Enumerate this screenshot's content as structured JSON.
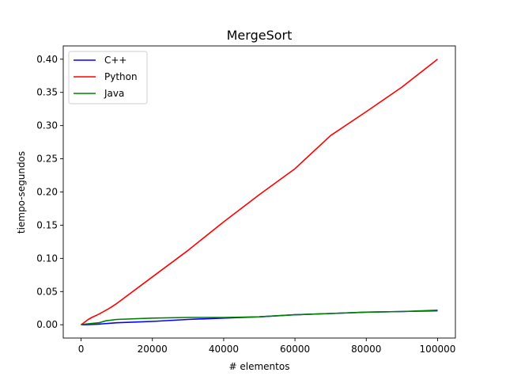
{
  "chart_data": {
    "type": "line",
    "title": "MergeSort",
    "xlabel": "# elementos",
    "ylabel": "tiempo-segundos",
    "xlim": [
      -5000,
      105000
    ],
    "ylim": [
      -0.02,
      0.42
    ],
    "xticks": [
      0,
      20000,
      40000,
      60000,
      80000,
      100000
    ],
    "xtick_labels": [
      "0",
      "20000",
      "40000",
      "60000",
      "80000",
      "100000"
    ],
    "yticks": [
      0.0,
      0.05,
      0.1,
      0.15,
      0.2,
      0.25,
      0.3,
      0.35,
      0.4
    ],
    "ytick_labels": [
      "0.00",
      "0.05",
      "0.10",
      "0.15",
      "0.20",
      "0.25",
      "0.30",
      "0.35",
      "0.40"
    ],
    "grid": false,
    "legend_position": "top-left",
    "series": [
      {
        "name": "C++",
        "color": "#0000ff",
        "x": [
          0,
          1000,
          5000,
          10000,
          20000,
          30000,
          40000,
          50000,
          60000,
          70000,
          80000,
          90000,
          100000
        ],
        "y": [
          0.0,
          0.0,
          0.001,
          0.003,
          0.005,
          0.008,
          0.01,
          0.012,
          0.015,
          0.017,
          0.019,
          0.02,
          0.021
        ]
      },
      {
        "name": "Python",
        "color": "#ff0000",
        "x": [
          0,
          500,
          1000,
          2000,
          3000,
          5000,
          8000,
          10000,
          20000,
          30000,
          40000,
          50000,
          60000,
          70000,
          80000,
          90000,
          100000
        ],
        "y": [
          0.0,
          0.002,
          0.004,
          0.008,
          0.011,
          0.016,
          0.025,
          0.032,
          0.072,
          0.112,
          0.155,
          0.196,
          0.235,
          0.285,
          0.321,
          0.358,
          0.4
        ]
      },
      {
        "name": "Java",
        "color": "#008000",
        "x": [
          0,
          1000,
          3000,
          5000,
          7000,
          10000,
          20000,
          30000,
          40000,
          50000,
          60000,
          70000,
          80000,
          90000,
          100000
        ],
        "y": [
          0.0,
          0.001,
          0.002,
          0.003,
          0.006,
          0.008,
          0.01,
          0.011,
          0.011,
          0.012,
          0.015,
          0.017,
          0.019,
          0.02,
          0.022
        ]
      }
    ]
  }
}
